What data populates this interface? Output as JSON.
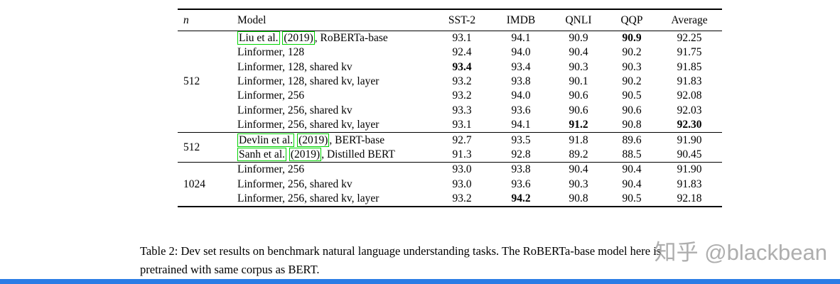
{
  "table": {
    "headers": [
      "n",
      "Model",
      "SST-2",
      "IMDB",
      "QNLI",
      "QQP",
      "Average"
    ],
    "groups": [
      {
        "n": "512",
        "rows": [
          {
            "model_parts": [
              {
                "text": "Liu et al.",
                "boxed": true
              },
              {
                "text": " ",
                "boxed": false
              },
              {
                "text": "(2019)",
                "boxed": true
              },
              {
                "text": ", RoBERTa-base",
                "boxed": false
              }
            ],
            "values": [
              "93.1",
              "94.1",
              "90.9",
              "90.9",
              "92.25"
            ],
            "bold": [
              3
            ]
          },
          {
            "model_parts": [
              {
                "text": "Linformer, 128",
                "boxed": false
              }
            ],
            "values": [
              "92.4",
              "94.0",
              "90.4",
              "90.2",
              "91.75"
            ],
            "bold": []
          },
          {
            "model_parts": [
              {
                "text": "Linformer, 128, shared kv",
                "boxed": false
              }
            ],
            "values": [
              "93.4",
              "93.4",
              "90.3",
              "90.3",
              "91.85"
            ],
            "bold": [
              0
            ]
          },
          {
            "model_parts": [
              {
                "text": "Linformer, 128, shared kv, layer",
                "boxed": false
              }
            ],
            "values": [
              "93.2",
              "93.8",
              "90.1",
              "90.2",
              "91.83"
            ],
            "bold": []
          },
          {
            "model_parts": [
              {
                "text": "Linformer, 256",
                "boxed": false
              }
            ],
            "values": [
              "93.2",
              "94.0",
              "90.6",
              "90.5",
              "92.08"
            ],
            "bold": []
          },
          {
            "model_parts": [
              {
                "text": "Linformer, 256, shared kv",
                "boxed": false
              }
            ],
            "values": [
              "93.3",
              "93.6",
              "90.6",
              "90.6",
              "92.03"
            ],
            "bold": []
          },
          {
            "model_parts": [
              {
                "text": "Linformer, 256, shared kv, layer",
                "boxed": false
              }
            ],
            "values": [
              "93.1",
              "94.1",
              "91.2",
              "90.8",
              "92.30"
            ],
            "bold": [
              2,
              4
            ]
          }
        ]
      },
      {
        "n": "512",
        "rows": [
          {
            "model_parts": [
              {
                "text": "Devlin et al.",
                "boxed": true
              },
              {
                "text": " ",
                "boxed": false
              },
              {
                "text": "(2019)",
                "boxed": true
              },
              {
                "text": ", BERT-base",
                "boxed": false
              }
            ],
            "values": [
              "92.7",
              "93.5",
              "91.8",
              "89.6",
              "91.90"
            ],
            "bold": []
          },
          {
            "model_parts": [
              {
                "text": "Sanh et al.",
                "boxed": true
              },
              {
                "text": " ",
                "boxed": false
              },
              {
                "text": "(2019)",
                "boxed": true
              },
              {
                "text": ", Distilled BERT",
                "boxed": false
              }
            ],
            "values": [
              "91.3",
              "92.8",
              "89.2",
              "88.5",
              "90.45"
            ],
            "bold": []
          }
        ]
      },
      {
        "n": "1024",
        "rows": [
          {
            "model_parts": [
              {
                "text": "Linformer, 256",
                "boxed": false
              }
            ],
            "values": [
              "93.0",
              "93.8",
              "90.4",
              "90.4",
              "91.90"
            ],
            "bold": []
          },
          {
            "model_parts": [
              {
                "text": "Linformer, 256, shared kv",
                "boxed": false
              }
            ],
            "values": [
              "93.0",
              "93.6",
              "90.3",
              "90.4",
              "91.83"
            ],
            "bold": []
          },
          {
            "model_parts": [
              {
                "text": "Linformer, 256, shared kv, layer",
                "boxed": false
              }
            ],
            "values": [
              "93.2",
              "94.2",
              "90.8",
              "90.5",
              "92.18"
            ],
            "bold": [
              1
            ]
          }
        ]
      }
    ]
  },
  "caption": {
    "text": "Table 2: Dev set results on benchmark natural language understanding tasks. The RoBERTa-base model here is pretrained with same corpus as BERT."
  },
  "watermark": {
    "text": "知乎 @blackbean"
  },
  "colors": {
    "citation_box": "#00d400",
    "bottom_bar": "#2b7ce5",
    "watermark": "#9a9a9a"
  }
}
